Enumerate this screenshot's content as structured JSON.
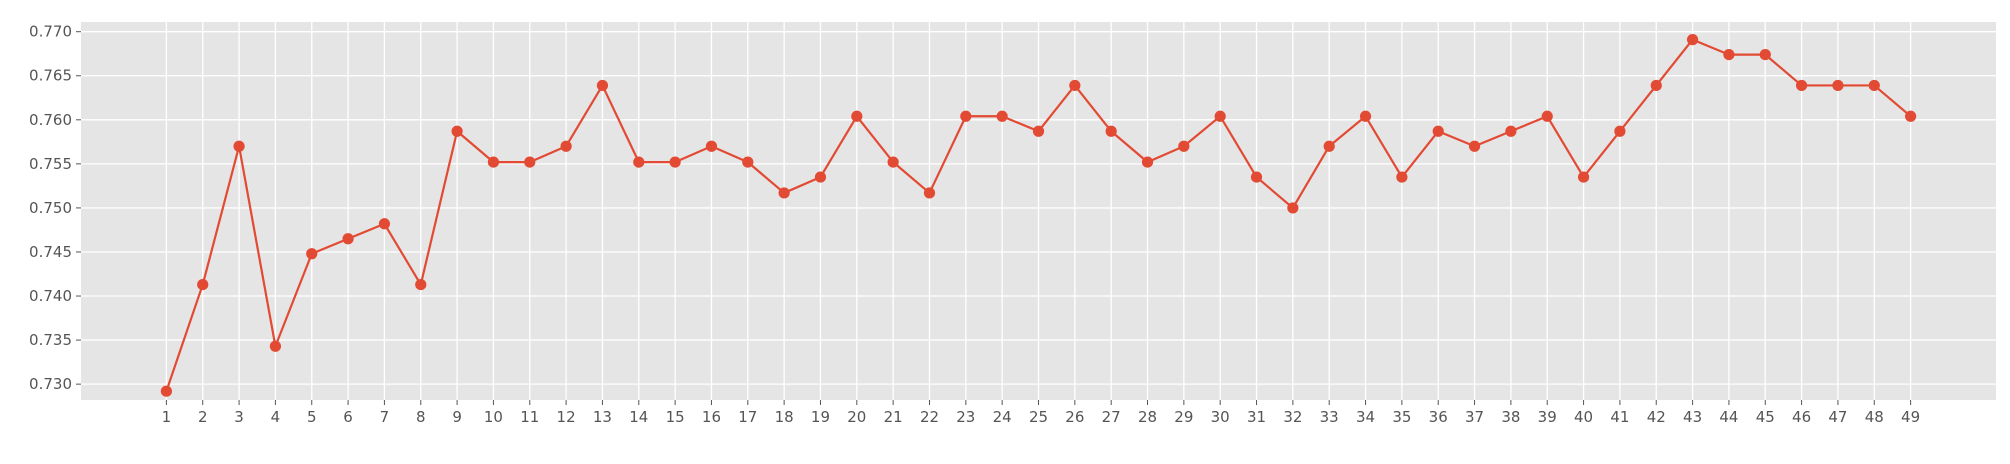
{
  "chart_data": {
    "type": "line",
    "title": "",
    "xlabel": "",
    "ylabel": "",
    "x": [
      1,
      2,
      3,
      4,
      5,
      6,
      7,
      8,
      9,
      10,
      11,
      12,
      13,
      14,
      15,
      16,
      17,
      18,
      19,
      20,
      21,
      22,
      23,
      24,
      25,
      26,
      27,
      28,
      29,
      30,
      31,
      32,
      33,
      34,
      35,
      36,
      37,
      38,
      39,
      40,
      41,
      42,
      43,
      44,
      45,
      46,
      47,
      48,
      49
    ],
    "series": [
      {
        "values": [
          0.7292,
          0.7413,
          0.757,
          0.7343,
          0.7448,
          0.7465,
          0.7482,
          0.7413,
          0.7587,
          0.7552,
          0.7552,
          0.757,
          0.7639,
          0.7552,
          0.7552,
          0.757,
          0.7552,
          0.7517,
          0.7535,
          0.7604,
          0.7552,
          0.7517,
          0.7604,
          0.7604,
          0.7587,
          0.7639,
          0.7587,
          0.7552,
          0.757,
          0.7604,
          0.7535,
          0.75,
          0.757,
          0.7604,
          0.7535,
          0.7587,
          0.757,
          0.7587,
          0.7604,
          0.7535,
          0.7587,
          0.7639,
          0.7691,
          0.7674,
          0.7674,
          0.7639,
          0.7639,
          0.7639,
          0.7604
        ],
        "color": "#E24A33"
      }
    ],
    "xlim": [
      -1.35,
      51.35
    ],
    "ylim": [
      0.7282,
      0.7711
    ],
    "yticks": [
      0.73,
      0.735,
      0.74,
      0.745,
      0.75,
      0.755,
      0.76,
      0.765,
      0.77
    ],
    "ytick_labels": [
      "0.730",
      "0.735",
      "0.740",
      "0.745",
      "0.750",
      "0.755",
      "0.760",
      "0.765",
      "0.770"
    ],
    "xtick_labels": [
      "1",
      "2",
      "3",
      "4",
      "5",
      "6",
      "7",
      "8",
      "9",
      "10",
      "11",
      "12",
      "13",
      "14",
      "15",
      "16",
      "17",
      "18",
      "19",
      "20",
      "21",
      "22",
      "23",
      "24",
      "25",
      "26",
      "27",
      "28",
      "29",
      "30",
      "31",
      "32",
      "33",
      "34",
      "35",
      "36",
      "37",
      "38",
      "39",
      "40",
      "41",
      "42",
      "43",
      "44",
      "45",
      "46",
      "47",
      "48",
      "49"
    ],
    "grid": true,
    "background_color": "#E5E5E5",
    "grid_color": "#FFFFFF",
    "tick_label_color": "#555555"
  }
}
